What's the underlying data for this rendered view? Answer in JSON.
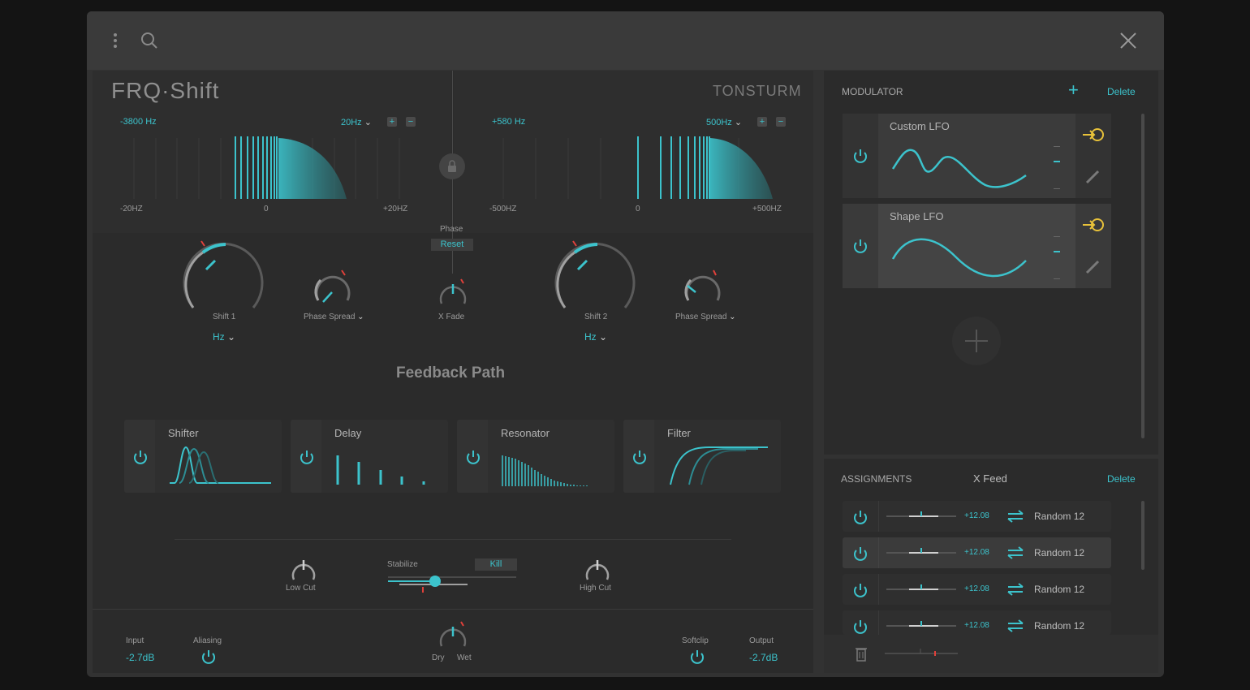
{
  "header": {
    "menu_icon": "vertical-dots-icon",
    "search_icon": "search-icon",
    "close_icon": "close-icon"
  },
  "plugin": {
    "title": "FRQ·Shift",
    "brand": "TONSTURM"
  },
  "shifter1": {
    "readout": "-3800 Hz",
    "range": "20Hz",
    "axis": [
      "-20HZ",
      "0",
      "+20HZ"
    ],
    "knob_label": "Shift 1",
    "unit": "Hz",
    "spread_label": "Phase Spread"
  },
  "shifter2": {
    "readout": "+580 Hz",
    "range": "500Hz",
    "axis": [
      "-500HZ",
      "0",
      "+500HZ"
    ],
    "knob_label": "Shift 2",
    "unit": "Hz",
    "spread_label": "Phase Spread"
  },
  "center": {
    "phase_label": "Phase",
    "reset_label": "Reset",
    "xfade_label": "X Fade"
  },
  "feedback": {
    "title": "Feedback Path",
    "modules": [
      "Shifter",
      "Delay",
      "Resonator",
      "Filter"
    ],
    "low_cut": "Low Cut",
    "stabilize": "Stabilize",
    "kill": "Kill",
    "high_cut": "High Cut"
  },
  "footer": {
    "input_label": "Input",
    "input_value": "-2.7dB",
    "aliasing_label": "Aliasing",
    "dry_label": "Dry",
    "wet_label": "Wet",
    "softclip_label": "Softclip",
    "output_label": "Output",
    "output_value": "-2.7dB"
  },
  "modulator": {
    "title": "MODULATOR",
    "add": "+",
    "delete": "Delete",
    "items": [
      {
        "name": "Custom LFO"
      },
      {
        "name": "Shape LFO"
      }
    ]
  },
  "assignments": {
    "title": "ASSIGNMENTS",
    "target": "X Feed",
    "delete": "Delete",
    "rows": [
      {
        "value": "+12.08",
        "source": "Random 12"
      },
      {
        "value": "+12.08",
        "source": "Random 12"
      },
      {
        "value": "+12.08",
        "source": "Random 12"
      },
      {
        "value": "+12.08",
        "source": "Random 12"
      }
    ]
  },
  "colors": {
    "accent": "#3cc3cc",
    "mod_accent": "#e8c23a",
    "indicator": "#e0403a"
  }
}
